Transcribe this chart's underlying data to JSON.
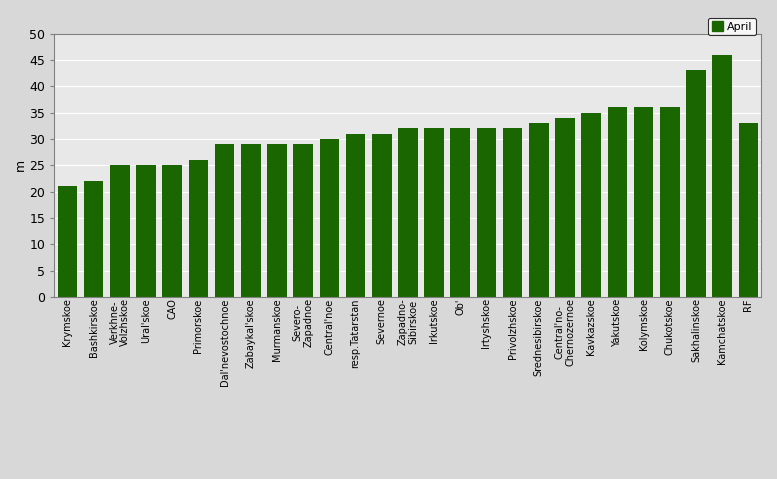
{
  "categories": [
    "Krymskoe",
    "Bashkirskoe",
    "Verkhne-\nVolzhskoe",
    "Ural'skoe",
    "CAO",
    "Primorskoe",
    "Dal'nevostochnoe",
    "Zabaykal'skoe",
    "Murmanskoe",
    "Severo-\nZapadnoe",
    "Central'noe",
    "resp.Tatarstan",
    "Severnoe",
    "Zapadno-\nSibirskoe",
    "Irkutskoe",
    "Ob'",
    "Irtyshskoe",
    "Privolzhskoe",
    "Srednesibirskoe",
    "Central'no-\nChernozernoe",
    "Kavkazskoe",
    "Yakutskoe",
    "Kolymskoe",
    "Chukotskoe",
    "Sakhalinskoe",
    "Kamchatskoe",
    "RF"
  ],
  "values": [
    21,
    22,
    25,
    25,
    25,
    26,
    29,
    29,
    29,
    29,
    30,
    31,
    31,
    32,
    32,
    32,
    32,
    32,
    33,
    34,
    35,
    36,
    36,
    36,
    43,
    46,
    33
  ],
  "bar_color": "#1a6600",
  "ylabel": "m",
  "ylim": [
    0,
    50
  ],
  "yticks": [
    0,
    5,
    10,
    15,
    20,
    25,
    30,
    35,
    40,
    45,
    50
  ],
  "legend_label": "April",
  "background_color": "#d8d8d8",
  "plot_bg_color": "#e8e8e8",
  "grid_color": "#ffffff",
  "spine_color": "#808080"
}
